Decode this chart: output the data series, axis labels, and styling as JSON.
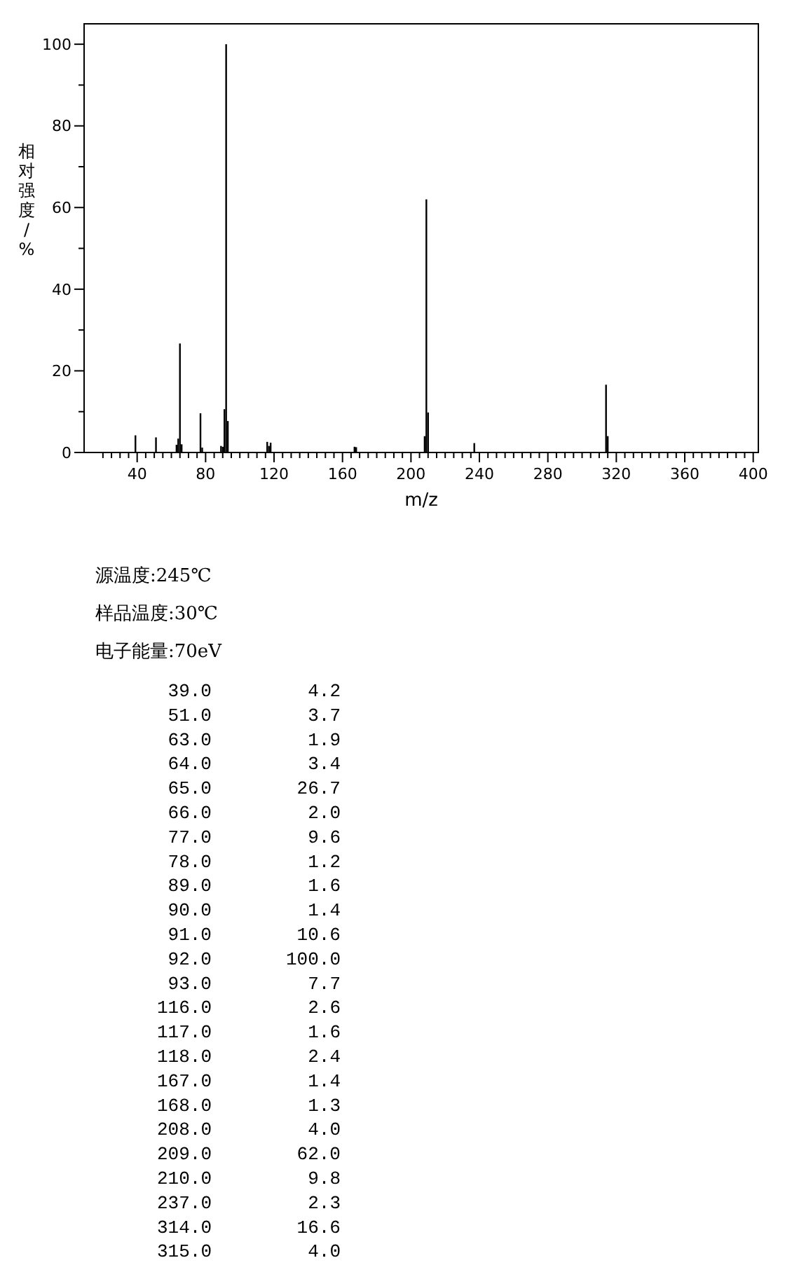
{
  "chart_data": {
    "type": "bar",
    "xlabel": "m/z",
    "ylabel": "相对强度/%",
    "x": [
      39,
      51,
      63,
      64,
      65,
      66,
      77,
      78,
      89,
      90,
      91,
      92,
      93,
      116,
      117,
      118,
      167,
      168,
      208,
      209,
      210,
      237,
      314,
      315
    ],
    "values": [
      4.2,
      3.7,
      1.9,
      3.4,
      26.7,
      2.0,
      9.6,
      1.2,
      1.6,
      1.4,
      10.6,
      100.0,
      7.7,
      2.6,
      1.6,
      2.4,
      1.4,
      1.3,
      4.0,
      62.0,
      9.8,
      2.3,
      16.6,
      4.0
    ],
    "color": "#000000",
    "xlim": [
      9,
      403
    ],
    "ylim": [
      0,
      105
    ],
    "xticks": [
      {
        "value": 20,
        "label": null
      },
      {
        "value": 25,
        "label": null
      },
      {
        "value": 30,
        "label": null
      },
      {
        "value": 35,
        "label": null
      },
      40,
      {
        "value": 45,
        "label": null
      },
      {
        "value": 50,
        "label": null
      },
      {
        "value": 55,
        "label": null
      },
      {
        "value": 60,
        "label": null
      },
      {
        "value": 65,
        "label": null
      },
      {
        "value": 70,
        "label": null
      },
      {
        "value": 75,
        "label": null
      },
      80,
      {
        "value": 85,
        "label": null
      },
      {
        "value": 90,
        "label": null
      },
      {
        "value": 95,
        "label": null
      },
      {
        "value": 100,
        "label": null
      },
      {
        "value": 105,
        "label": null
      },
      {
        "value": 110,
        "label": null
      },
      {
        "value": 115,
        "label": null
      },
      120,
      {
        "value": 125,
        "label": null
      },
      {
        "value": 130,
        "label": null
      },
      {
        "value": 135,
        "label": null
      },
      {
        "value": 140,
        "label": null
      },
      {
        "value": 145,
        "label": null
      },
      {
        "value": 150,
        "label": null
      },
      {
        "value": 155,
        "label": null
      },
      160,
      {
        "value": 165,
        "label": null
      },
      {
        "value": 170,
        "label": null
      },
      {
        "value": 175,
        "label": null
      },
      {
        "value": 180,
        "label": null
      },
      {
        "value": 185,
        "label": null
      },
      {
        "value": 190,
        "label": null
      },
      {
        "value": 195,
        "label": null
      },
      200,
      {
        "value": 205,
        "label": null
      },
      {
        "value": 210,
        "label": null
      },
      {
        "value": 215,
        "label": null
      },
      {
        "value": 220,
        "label": null
      },
      {
        "value": 225,
        "label": null
      },
      {
        "value": 230,
        "label": null
      },
      {
        "value": 235,
        "label": null
      },
      240,
      {
        "value": 245,
        "label": null
      },
      {
        "value": 250,
        "label": null
      },
      {
        "value": 255,
        "label": null
      },
      {
        "value": 260,
        "label": null
      },
      {
        "value": 265,
        "label": null
      },
      {
        "value": 270,
        "label": null
      },
      {
        "value": 275,
        "label": null
      },
      280,
      {
        "value": 285,
        "label": null
      },
      {
        "value": 290,
        "label": null
      },
      {
        "value": 295,
        "label": null
      },
      {
        "value": 300,
        "label": null
      },
      {
        "value": 305,
        "label": null
      },
      {
        "value": 310,
        "label": null
      },
      {
        "value": 315,
        "label": null
      },
      320,
      {
        "value": 325,
        "label": null
      },
      {
        "value": 330,
        "label": null
      },
      {
        "value": 335,
        "label": null
      },
      {
        "value": 340,
        "label": null
      },
      {
        "value": 345,
        "label": null
      },
      {
        "value": 350,
        "label": null
      },
      {
        "value": 355,
        "label": null
      },
      360,
      {
        "value": 365,
        "label": null
      },
      {
        "value": 370,
        "label": null
      },
      {
        "value": 375,
        "label": null
      },
      {
        "value": 380,
        "label": null
      },
      {
        "value": 385,
        "label": null
      },
      {
        "value": 390,
        "label": null
      },
      {
        "value": 395,
        "label": null
      },
      400
    ],
    "yticks": [
      0,
      {
        "value": 10,
        "label": null
      },
      20,
      {
        "value": 30,
        "label": null
      },
      40,
      {
        "value": 50,
        "label": null
      },
      60,
      {
        "value": 70,
        "label": null
      },
      80,
      {
        "value": 90,
        "label": null
      },
      100
    ],
    "grid": false,
    "annotations": [
      "源温度:245℃",
      "样品温度:30℃",
      "电子能量:70eV",
      "39.0",
      "4.2",
      "51.0",
      "3.7",
      "63.0",
      "1.9",
      "64.0",
      "3.4",
      "65.0",
      "26.7",
      "66.0",
      "2.0",
      "77.0",
      "9.6",
      "78.0",
      "1.2",
      "89.0",
      "1.6",
      "90.0",
      "1.4",
      "91.0",
      "10.6",
      "92.0",
      "100.0",
      "93.0",
      "7.7",
      "116.0",
      "2.6",
      "117.0",
      "1.6",
      "118.0",
      "2.4",
      "167.0",
      "1.4",
      "168.0",
      "1.3",
      "208.0",
      "4.0",
      "209.0",
      "62.0",
      "210.0",
      "9.8",
      "237.0",
      "2.3",
      "314.0",
      "16.6",
      "315.0",
      "4.0"
    ]
  }
}
